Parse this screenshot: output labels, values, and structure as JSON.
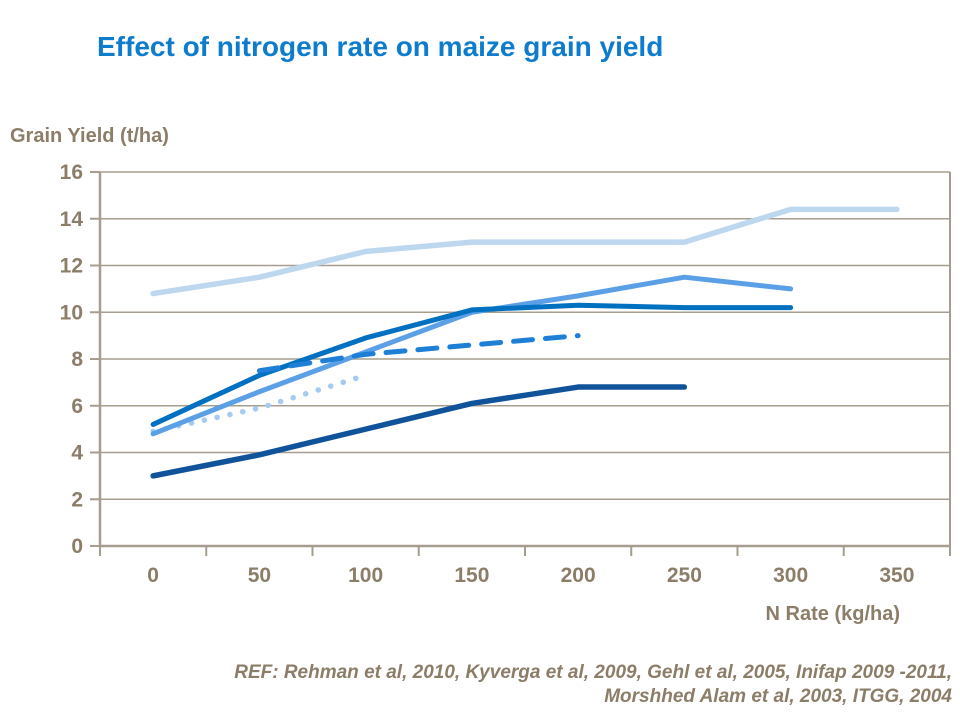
{
  "header": {
    "title": "Effect of nitrogen rate on maize grain yield"
  },
  "footer": {
    "ref_line1": "REF: Rehman et al, 2010, Kyverga et al, 2009, Gehl et al, 2005, Inifap 2009 -2011,",
    "ref_line2": "Morshhed Alam et al, 2003, ITGG, 2004"
  },
  "colors": {
    "title_blue": "#0d7ccc",
    "axis_line": "#a79d8f",
    "grid": "#a79d8f",
    "axis_text": "#8c7d68"
  },
  "chart_data": {
    "type": "line",
    "title": "Effect of nitrogen rate on maize grain yield",
    "xlabel": "N Rate (kg/ha)",
    "ylabel": "Grain Yield (t/ha)",
    "x_categories": [
      "0",
      "50",
      "100",
      "150",
      "200",
      "250",
      "300",
      "350"
    ],
    "x_values": [
      0,
      50,
      100,
      150,
      200,
      250,
      300,
      350
    ],
    "ylim": [
      0,
      16
    ],
    "y_ticks": [
      0,
      2,
      4,
      6,
      8,
      10,
      12,
      14,
      16
    ],
    "grid": true,
    "legend": "none",
    "series": [
      {
        "name": "pale-blue-solid",
        "color": "#bdd7ee",
        "style": "solid",
        "width": 5.5,
        "values": [
          10.8,
          11.5,
          12.6,
          13,
          13,
          13,
          14.4,
          14.4
        ]
      },
      {
        "name": "pale-blue-dotted",
        "color": "#a5cbf0",
        "style": "dotted",
        "width": 5.5,
        "values": [
          4.9,
          5.9,
          7.3,
          null,
          null,
          null,
          null,
          null
        ]
      },
      {
        "name": "medium-blue-solid",
        "color": "#5ba0e6",
        "style": "solid",
        "width": 5,
        "values": [
          4.8,
          6.6,
          8.3,
          10,
          10.7,
          11.5,
          11,
          null
        ]
      },
      {
        "name": "dark-blue-solid",
        "color": "#0070c0",
        "style": "solid",
        "width": 5,
        "values": [
          5.2,
          7.3,
          8.9,
          10.1,
          10.3,
          10.2,
          10.2,
          null
        ]
      },
      {
        "name": "bright-blue-dashed",
        "color": "#1e7fd6",
        "style": "dashed",
        "width": 5,
        "values": [
          null,
          7.5,
          8.2,
          8.6,
          9,
          null,
          null,
          null
        ]
      },
      {
        "name": "navy-solid",
        "color": "#11539b",
        "style": "solid",
        "width": 5.5,
        "values": [
          3,
          3.9,
          5,
          6.1,
          6.8,
          6.8,
          null,
          null
        ]
      }
    ]
  }
}
